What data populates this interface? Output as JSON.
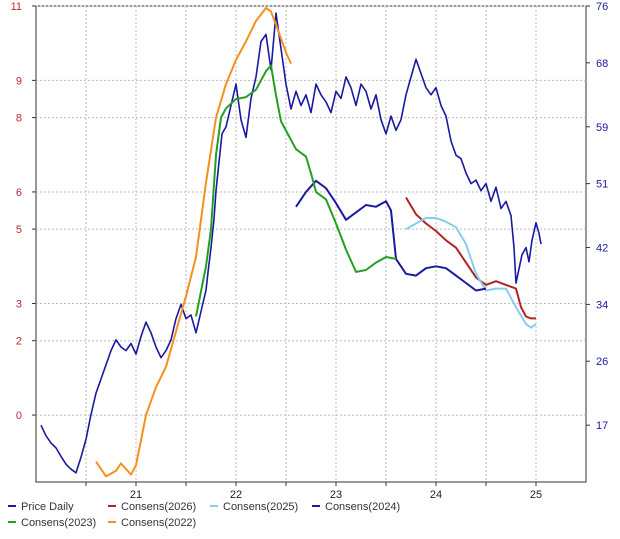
{
  "chart_data": {
    "type": "line",
    "xlabel": "",
    "ylabel_left": "",
    "ylabel_right": "",
    "x_ticks": [
      "21",
      "22",
      "23",
      "24",
      "25"
    ],
    "x_range": [
      20.0,
      25.5
    ],
    "y_left_ticks": [
      "0",
      "2",
      "3",
      "5",
      "6",
      "8",
      "9",
      "11"
    ],
    "y_right_ticks": [
      "17",
      "26",
      "34",
      "42",
      "51",
      "59",
      "68",
      "76"
    ],
    "y_left_range": [
      -1.8,
      11.0
    ],
    "y_right_range": [
      9.0,
      76.0
    ],
    "grid": true,
    "legend_position": "bottom",
    "series": [
      {
        "name": "Price Daily",
        "axis": "right",
        "color": "#1a1aa0",
        "points": [
          [
            20.05,
            17.0
          ],
          [
            20.1,
            15.5
          ],
          [
            20.15,
            14.5
          ],
          [
            20.2,
            13.8
          ],
          [
            20.25,
            12.6
          ],
          [
            20.3,
            11.5
          ],
          [
            20.35,
            10.8
          ],
          [
            20.4,
            10.3
          ],
          [
            20.45,
            12.5
          ],
          [
            20.5,
            15.0
          ],
          [
            20.55,
            18.5
          ],
          [
            20.6,
            21.5
          ],
          [
            20.65,
            23.5
          ],
          [
            20.7,
            25.5
          ],
          [
            20.75,
            27.5
          ],
          [
            20.8,
            29.0
          ],
          [
            20.85,
            28.0
          ],
          [
            20.9,
            27.5
          ],
          [
            20.95,
            28.5
          ],
          [
            21.0,
            27.0
          ],
          [
            21.05,
            29.5
          ],
          [
            21.1,
            31.5
          ],
          [
            21.15,
            30.0
          ],
          [
            21.2,
            28.0
          ],
          [
            21.25,
            26.5
          ],
          [
            21.3,
            27.5
          ],
          [
            21.35,
            29.0
          ],
          [
            21.4,
            32.0
          ],
          [
            21.45,
            34.0
          ],
          [
            21.5,
            32.0
          ],
          [
            21.55,
            32.5
          ],
          [
            21.6,
            30.0
          ],
          [
            21.65,
            33.0
          ],
          [
            21.7,
            36.0
          ],
          [
            21.72,
            38.5
          ],
          [
            21.75,
            42.0
          ],
          [
            21.78,
            46.0
          ],
          [
            21.8,
            50.0
          ],
          [
            21.83,
            54.0
          ],
          [
            21.86,
            58.0
          ],
          [
            21.9,
            59.0
          ],
          [
            21.95,
            62.0
          ],
          [
            22.0,
            65.0
          ],
          [
            22.05,
            60.0
          ],
          [
            22.1,
            57.5
          ],
          [
            22.15,
            63.0
          ],
          [
            22.2,
            66.0
          ],
          [
            22.25,
            71.0
          ],
          [
            22.3,
            72.0
          ],
          [
            22.35,
            67.0
          ],
          [
            22.4,
            75.0
          ],
          [
            22.45,
            70.0
          ],
          [
            22.5,
            65.0
          ],
          [
            22.55,
            61.5
          ],
          [
            22.6,
            64.0
          ],
          [
            22.65,
            62.0
          ],
          [
            22.7,
            63.5
          ],
          [
            22.75,
            61.0
          ],
          [
            22.8,
            65.0
          ],
          [
            22.85,
            63.5
          ],
          [
            22.9,
            62.5
          ],
          [
            22.95,
            61.0
          ],
          [
            23.0,
            64.0
          ],
          [
            23.05,
            63.0
          ],
          [
            23.1,
            66.0
          ],
          [
            23.15,
            64.5
          ],
          [
            23.2,
            62.0
          ],
          [
            23.25,
            65.0
          ],
          [
            23.3,
            64.0
          ],
          [
            23.35,
            61.5
          ],
          [
            23.4,
            63.5
          ],
          [
            23.45,
            60.0
          ],
          [
            23.5,
            58.0
          ],
          [
            23.55,
            60.5
          ],
          [
            23.6,
            58.5
          ],
          [
            23.65,
            60.0
          ],
          [
            23.7,
            63.5
          ],
          [
            23.75,
            66.0
          ],
          [
            23.8,
            68.5
          ],
          [
            23.85,
            66.5
          ],
          [
            23.9,
            64.5
          ],
          [
            23.95,
            63.5
          ],
          [
            24.0,
            64.5
          ],
          [
            24.05,
            62.0
          ],
          [
            24.1,
            60.5
          ],
          [
            24.15,
            57.0
          ],
          [
            24.2,
            55.0
          ],
          [
            24.25,
            54.5
          ],
          [
            24.3,
            52.5
          ],
          [
            24.35,
            51.0
          ],
          [
            24.4,
            51.5
          ],
          [
            24.45,
            50.0
          ],
          [
            24.5,
            51.0
          ],
          [
            24.55,
            48.5
          ],
          [
            24.6,
            50.5
          ],
          [
            24.65,
            47.5
          ],
          [
            24.7,
            48.5
          ],
          [
            24.75,
            46.5
          ],
          [
            24.78,
            42.0
          ],
          [
            24.8,
            37.0
          ],
          [
            24.83,
            39.0
          ],
          [
            24.86,
            41.0
          ],
          [
            24.9,
            42.0
          ],
          [
            24.93,
            40.0
          ],
          [
            24.96,
            43.0
          ],
          [
            25.0,
            45.5
          ],
          [
            25.03,
            44.0
          ],
          [
            25.05,
            42.5
          ]
        ]
      },
      {
        "name": "Consens(2026)",
        "axis": "left",
        "color": "#b22222",
        "points": [
          [
            23.7,
            5.85
          ],
          [
            23.8,
            5.4
          ],
          [
            23.9,
            5.15
          ],
          [
            24.0,
            4.95
          ],
          [
            24.1,
            4.7
          ],
          [
            24.2,
            4.5
          ],
          [
            24.3,
            4.1
          ],
          [
            24.4,
            3.7
          ],
          [
            24.5,
            3.5
          ],
          [
            24.6,
            3.6
          ],
          [
            24.7,
            3.5
          ],
          [
            24.8,
            3.4
          ],
          [
            24.85,
            2.9
          ],
          [
            24.9,
            2.65
          ],
          [
            24.95,
            2.6
          ],
          [
            25.0,
            2.6
          ]
        ]
      },
      {
        "name": "Consens(2025)",
        "axis": "left",
        "color": "#87ceeb",
        "points": [
          [
            23.7,
            5.0
          ],
          [
            23.8,
            5.15
          ],
          [
            23.9,
            5.3
          ],
          [
            24.0,
            5.3
          ],
          [
            24.1,
            5.2
          ],
          [
            24.2,
            5.05
          ],
          [
            24.3,
            4.6
          ],
          [
            24.4,
            3.8
          ],
          [
            24.5,
            3.35
          ],
          [
            24.6,
            3.4
          ],
          [
            24.7,
            3.4
          ],
          [
            24.8,
            2.9
          ],
          [
            24.9,
            2.45
          ],
          [
            24.95,
            2.35
          ],
          [
            25.0,
            2.45
          ]
        ]
      },
      {
        "name": "Consens(2024)",
        "axis": "left",
        "color": "#1a1aa0",
        "points": [
          [
            22.6,
            5.6
          ],
          [
            22.7,
            6.0
          ],
          [
            22.8,
            6.3
          ],
          [
            22.9,
            6.1
          ],
          [
            23.0,
            5.7
          ],
          [
            23.1,
            5.25
          ],
          [
            23.2,
            5.45
          ],
          [
            23.3,
            5.65
          ],
          [
            23.4,
            5.6
          ],
          [
            23.5,
            5.75
          ],
          [
            23.55,
            5.5
          ],
          [
            23.6,
            4.2
          ],
          [
            23.7,
            3.8
          ],
          [
            23.8,
            3.75
          ],
          [
            23.9,
            3.95
          ],
          [
            24.0,
            4.0
          ],
          [
            24.1,
            3.95
          ],
          [
            24.2,
            3.75
          ],
          [
            24.3,
            3.55
          ],
          [
            24.4,
            3.35
          ],
          [
            24.5,
            3.4
          ]
        ]
      },
      {
        "name": "Consens(2023)",
        "axis": "left",
        "color": "#22a022",
        "points": [
          [
            21.6,
            2.65
          ],
          [
            21.7,
            4.0
          ],
          [
            21.75,
            5.0
          ],
          [
            21.8,
            7.0
          ],
          [
            21.85,
            8.0
          ],
          [
            21.9,
            8.25
          ],
          [
            22.0,
            8.5
          ],
          [
            22.1,
            8.55
          ],
          [
            22.2,
            8.75
          ],
          [
            22.3,
            9.25
          ],
          [
            22.35,
            9.4
          ],
          [
            22.4,
            8.6
          ],
          [
            22.45,
            7.9
          ],
          [
            22.5,
            7.65
          ],
          [
            22.6,
            7.15
          ],
          [
            22.7,
            6.95
          ],
          [
            22.75,
            6.5
          ],
          [
            22.8,
            6.0
          ],
          [
            22.9,
            5.8
          ],
          [
            23.0,
            5.15
          ],
          [
            23.1,
            4.45
          ],
          [
            23.2,
            3.85
          ],
          [
            23.3,
            3.9
          ],
          [
            23.4,
            4.1
          ],
          [
            23.5,
            4.25
          ],
          [
            23.6,
            4.2
          ]
        ]
      },
      {
        "name": "Consens(2022)",
        "axis": "left",
        "color": "#f5901e",
        "points": [
          [
            20.6,
            -1.25
          ],
          [
            20.7,
            -1.65
          ],
          [
            20.8,
            -1.5
          ],
          [
            20.85,
            -1.3
          ],
          [
            20.95,
            -1.6
          ],
          [
            21.0,
            -1.35
          ],
          [
            21.1,
            0.0
          ],
          [
            21.2,
            0.75
          ],
          [
            21.3,
            1.3
          ],
          [
            21.4,
            2.25
          ],
          [
            21.5,
            3.2
          ],
          [
            21.6,
            4.25
          ],
          [
            21.7,
            6.25
          ],
          [
            21.8,
            8.0
          ],
          [
            21.9,
            8.9
          ],
          [
            22.0,
            9.55
          ],
          [
            22.1,
            10.05
          ],
          [
            22.2,
            10.6
          ],
          [
            22.3,
            10.95
          ],
          [
            22.35,
            10.85
          ],
          [
            22.4,
            10.5
          ],
          [
            22.5,
            9.75
          ],
          [
            22.55,
            9.45
          ]
        ]
      }
    ]
  }
}
